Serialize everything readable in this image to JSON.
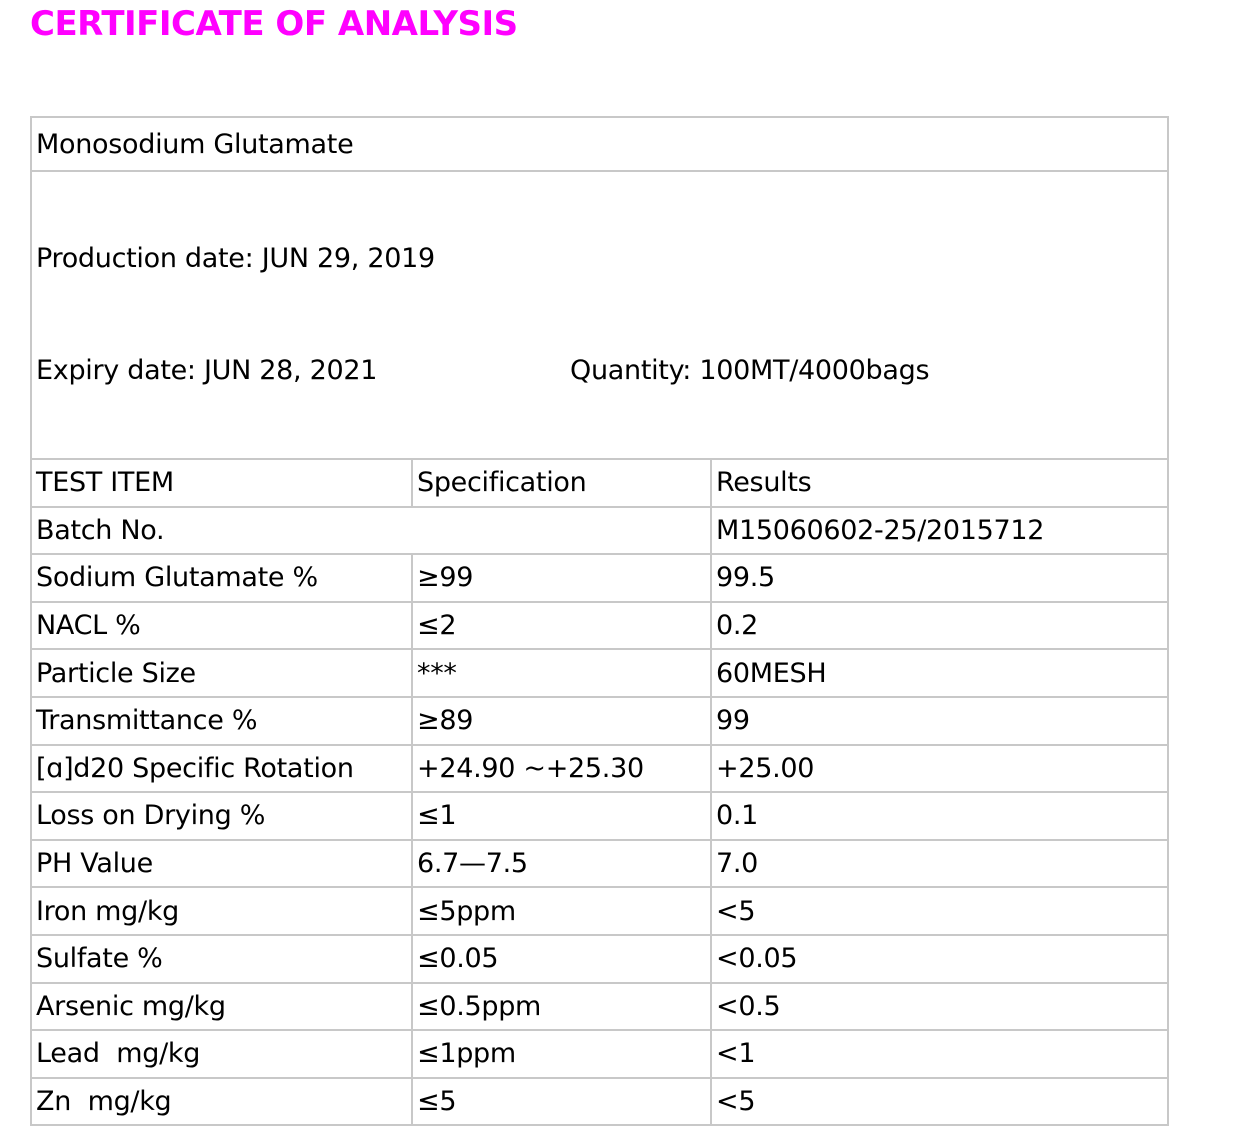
{
  "title": "CERTIFICATE OF ANALYSIS",
  "product": "Monosodium Glutamate",
  "production_date": "Production date: JUN 29, 2019",
  "expiry_date": "Expiry date: JUN 28, 2021",
  "quantity": "Quantity: 100MT/4000bags",
  "table": {
    "header": [
      "TEST ITEM",
      "Specification",
      "Results"
    ],
    "rows": [
      [
        "Batch No.",
        "M15060602-25/2015712"
      ],
      [
        "Sodium Glutamate %",
        "≥99",
        "99.5"
      ],
      [
        "NACL %",
        "≤2",
        "0.2"
      ],
      [
        "Particle Size",
        "***",
        "60MESH"
      ],
      [
        "Transmittance %",
        "≥89",
        "99"
      ],
      [
        "[ɑ]d20 Specific Rotation",
        "+24.90 ~+25.30",
        "+25.00"
      ],
      [
        "Loss on Drying %",
        "≤1",
        "0.1"
      ],
      [
        "PH Value",
        "6.7—7.5",
        "7.0"
      ],
      [
        "Iron mg/kg",
        "≤5ppm",
        "<5"
      ],
      [
        "Sulfate %",
        "≤0.05",
        "<0.05"
      ],
      [
        "Arsenic mg/kg",
        "≤0.5ppm",
        "<0.5"
      ],
      [
        "Lead  mg/kg",
        "≤1ppm",
        "<1"
      ],
      [
        "Zn  mg/kg",
        "≤5",
        "<5"
      ]
    ]
  }
}
